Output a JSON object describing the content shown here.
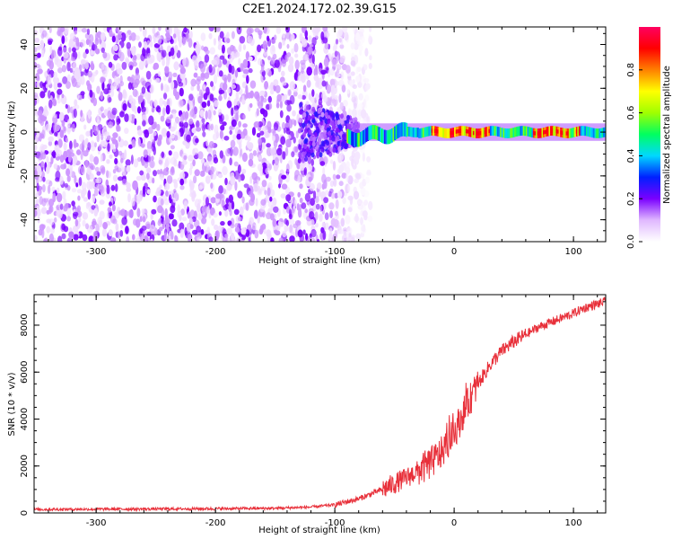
{
  "chart_data": [
    {
      "type": "heatmap",
      "title": "C2E1.2024.172.02.39.G15",
      "xlabel": "Height of straight line (km)",
      "ylabel": "Frequency (Hz)",
      "xlim": [
        -352,
        127
      ],
      "ylim": [
        -50,
        48
      ],
      "xticks": [
        -300,
        -200,
        -100,
        0,
        100
      ],
      "yticks": [
        -40,
        -20,
        0,
        20,
        40
      ],
      "colorbar": {
        "label": "Normalized spectral amplitude",
        "range": [
          0.0,
          1.0
        ],
        "ticks": [
          "0.0",
          "0.2",
          "0.4",
          "0.6",
          "0.8"
        ],
        "colormap": [
          "#ffffff",
          "#e0b8ff",
          "#7a00ff",
          "#0020ff",
          "#00d8ff",
          "#00ff60",
          "#a0ff00",
          "#ffff00",
          "#ff8000",
          "#ff0000",
          "#ff0060"
        ]
      },
      "regions": [
        {
          "x_range": [
            -352,
            -85
          ],
          "freq_range": [
            -50,
            48
          ],
          "amplitude": 0.05,
          "description_pattern": "noise"
        },
        {
          "x_range": [
            -130,
            -80
          ],
          "freq_range": [
            -15,
            12
          ],
          "amplitude": 0.12
        },
        {
          "x_range": [
            -90,
            127
          ],
          "freq_center": 0,
          "freq_halfwidth": 4,
          "amplitude": 0.55
        },
        {
          "x_range": [
            -20,
            30
          ],
          "freq_center": 0,
          "amplitude": 0.95
        },
        {
          "x_range": [
            65,
            95
          ],
          "freq_center": 0,
          "amplitude": 0.95
        },
        {
          "x_range": [
            100,
            105
          ],
          "freq_center": 0,
          "amplitude": 0.95
        }
      ]
    },
    {
      "type": "line",
      "xlabel": "Height of straight line (km)",
      "ylabel": "SNR (10 * v/v)",
      "xlim": [
        -352,
        127
      ],
      "ylim": [
        0,
        9300
      ],
      "xticks": [
        -300,
        -200,
        -100,
        0,
        100
      ],
      "yticks": [
        0,
        2000,
        4000,
        6000,
        8000
      ],
      "color": "#e8303a",
      "x": [
        -352,
        -300,
        -250,
        -200,
        -150,
        -120,
        -100,
        -80,
        -60,
        -40,
        -20,
        -10,
        0,
        10,
        20,
        30,
        40,
        50,
        60,
        70,
        80,
        90,
        100,
        110,
        120,
        127
      ],
      "y": [
        150,
        160,
        170,
        180,
        200,
        250,
        350,
        600,
        1000,
        1500,
        2100,
        2600,
        3400,
        4500,
        5500,
        6300,
        6900,
        7300,
        7600,
        7900,
        8100,
        8300,
        8500,
        8750,
        8900,
        9000
      ]
    }
  ]
}
